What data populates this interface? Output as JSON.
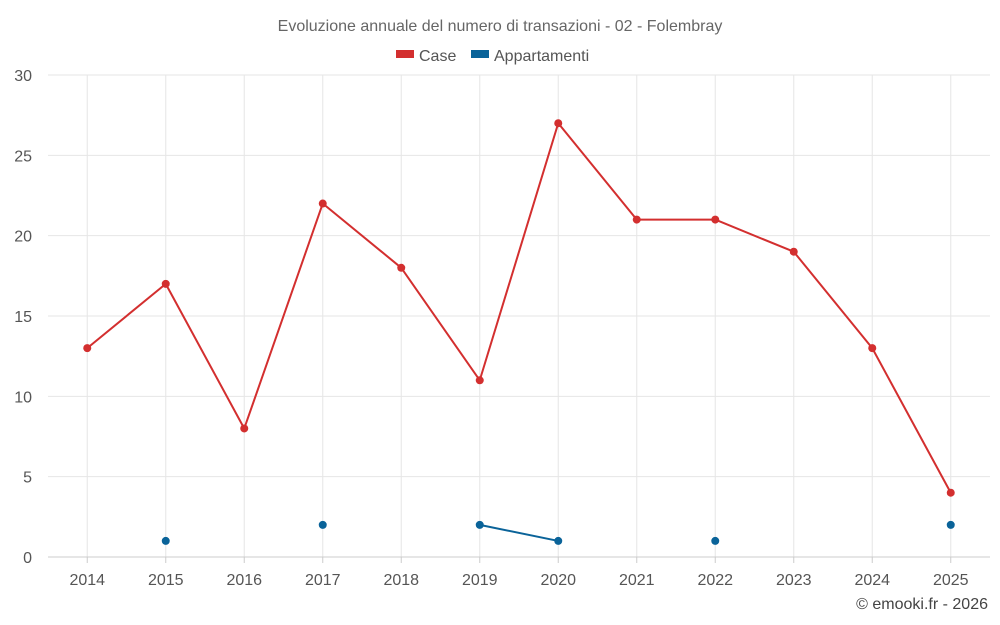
{
  "chart_data": {
    "type": "line",
    "title": "Evoluzione annuale del numero di transazioni - 02 - Folembray",
    "xlabel": "",
    "ylabel": "",
    "categories": [
      "2014",
      "2015",
      "2016",
      "2017",
      "2018",
      "2019",
      "2020",
      "2021",
      "2022",
      "2023",
      "2024",
      "2025"
    ],
    "ylim": [
      0,
      30
    ],
    "yticks": [
      "0",
      "5",
      "10",
      "15",
      "20",
      "25",
      "30"
    ],
    "grid": true,
    "legend_position": "top-center",
    "series": [
      {
        "name": "Case",
        "color": "#d32f2f",
        "values": [
          13,
          17,
          8,
          22,
          18,
          11,
          27,
          21,
          21,
          19,
          13,
          4
        ]
      },
      {
        "name": "Appartamenti",
        "color": "#0a6399",
        "values": [
          null,
          1,
          null,
          2,
          null,
          2,
          1,
          null,
          1,
          null,
          null,
          2
        ]
      }
    ]
  },
  "credit": "© emooki.fr - 2026"
}
